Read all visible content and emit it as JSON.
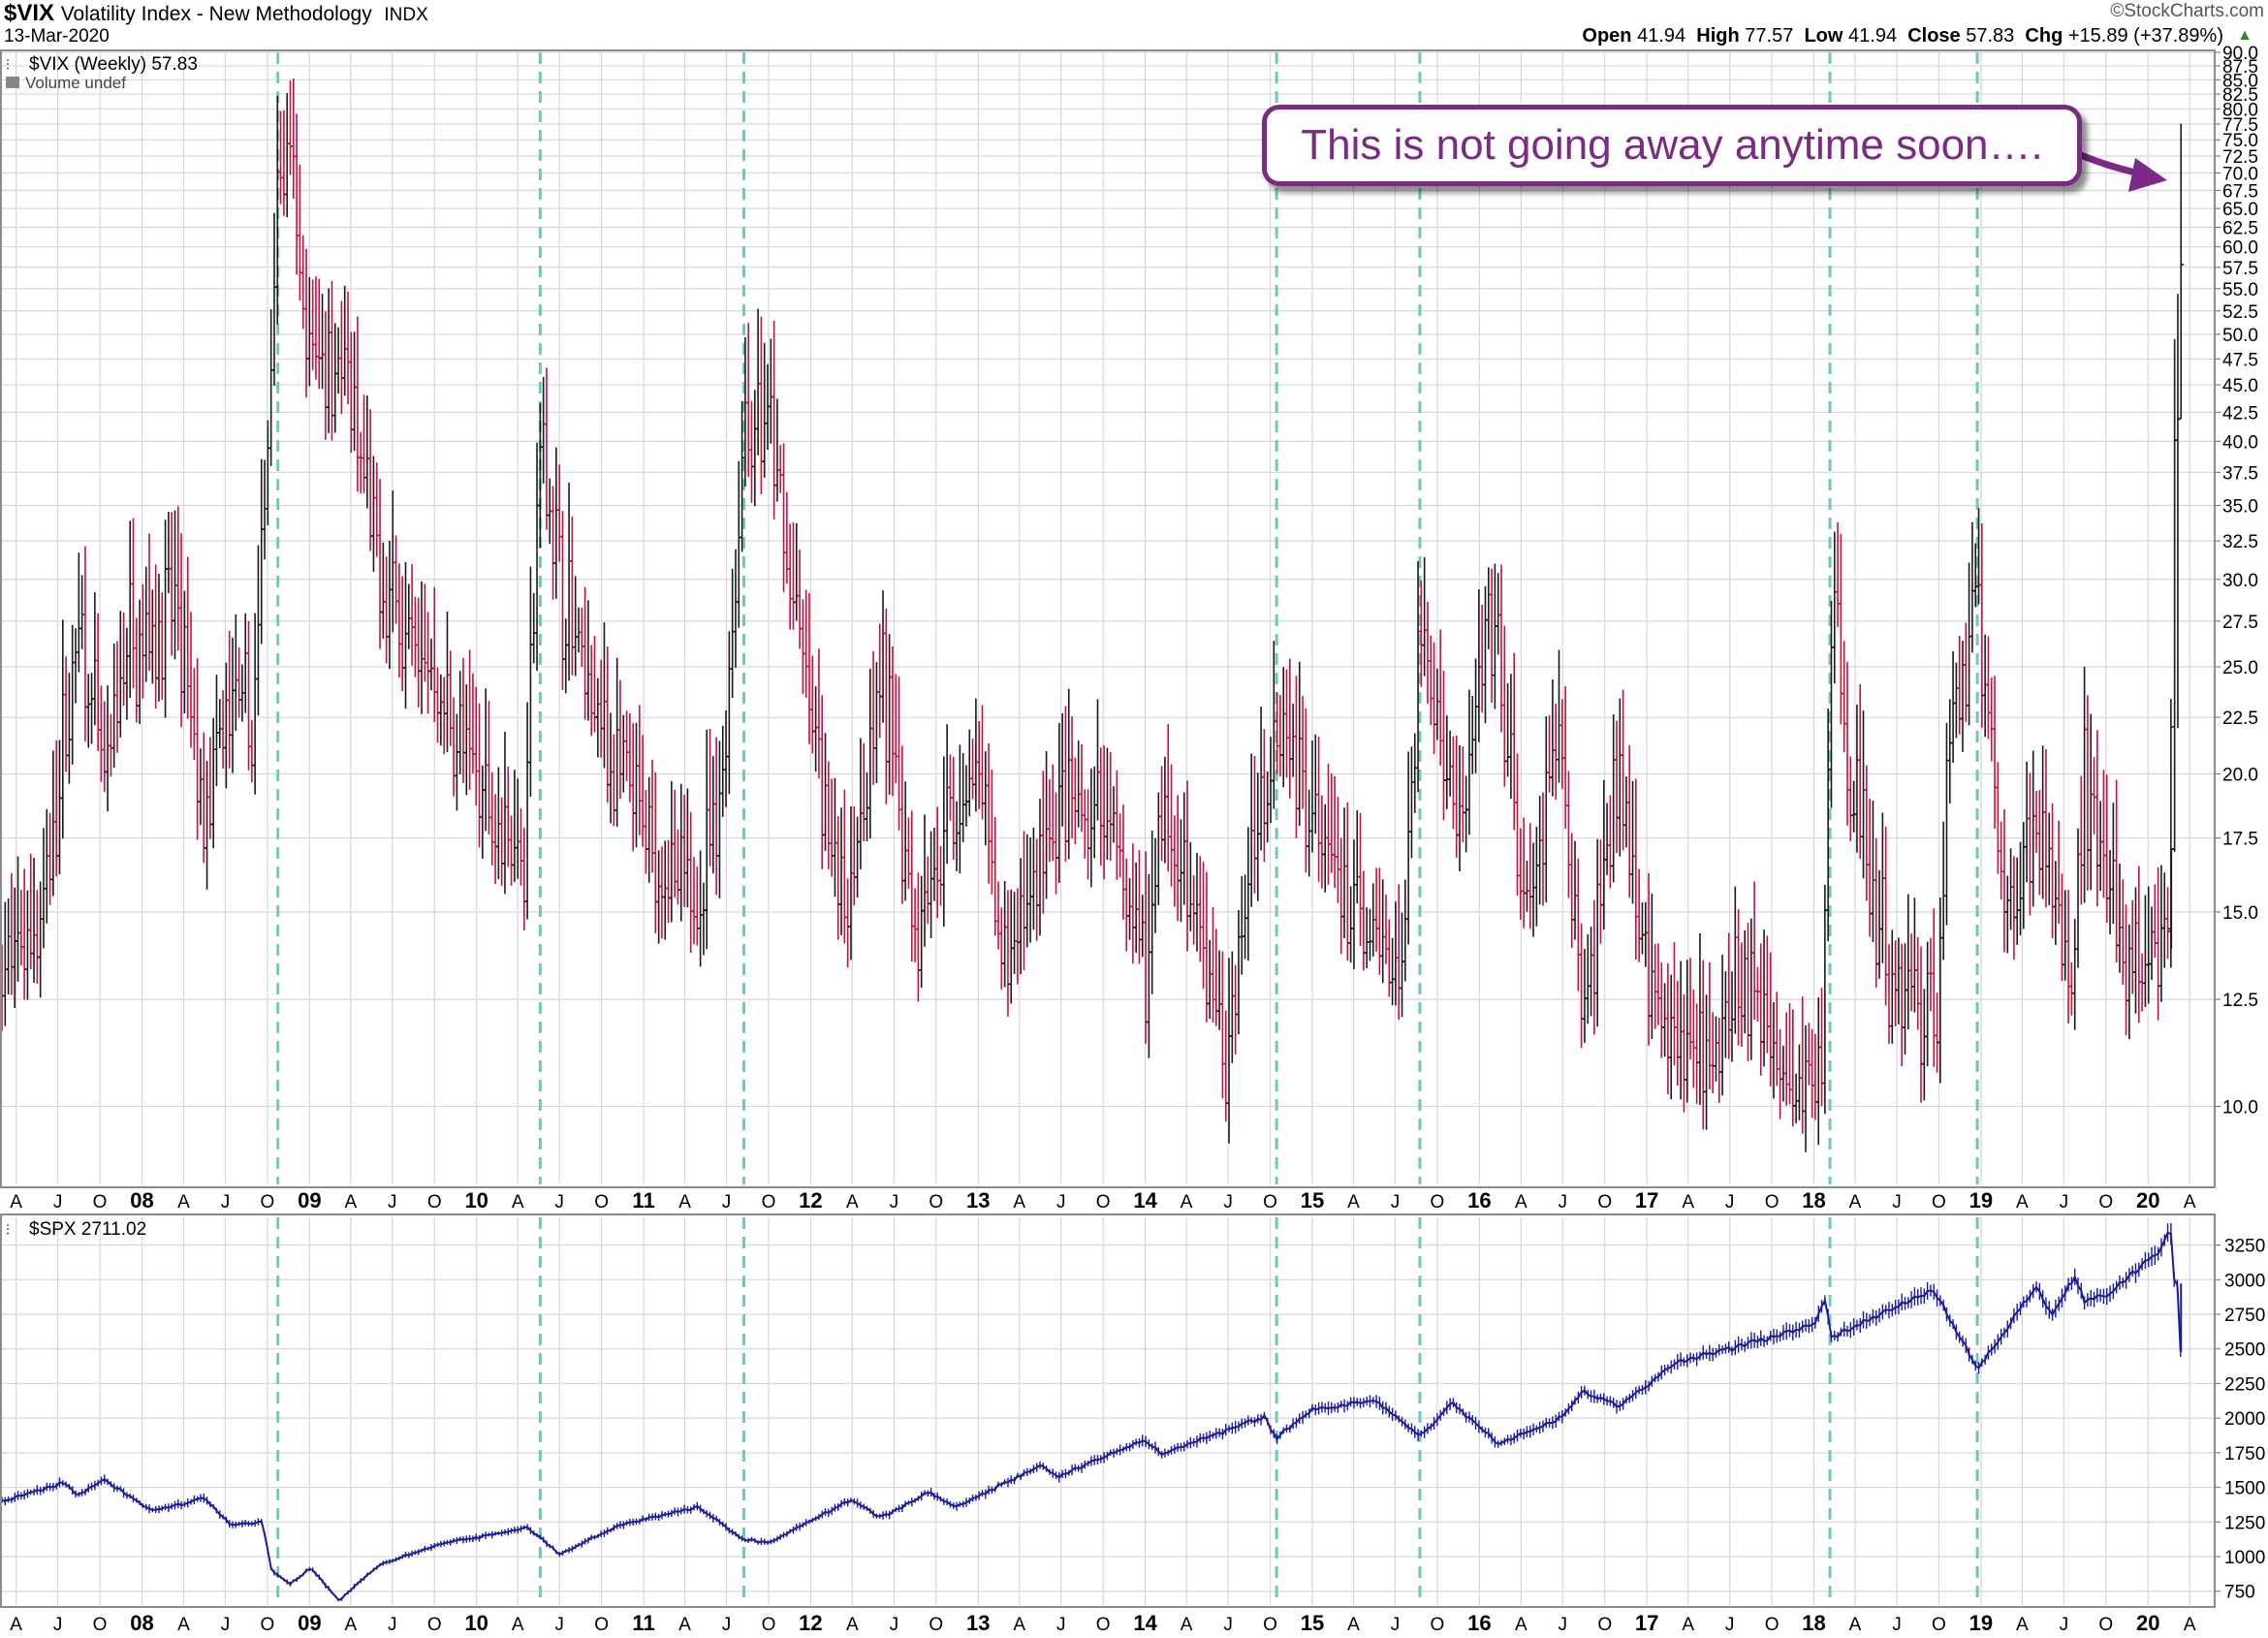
{
  "header": {
    "symbol": "$VIX",
    "name": "Volatility Index - New Methodology",
    "exchange": "INDX",
    "date": "13-Mar-2020",
    "brand": "©StockCharts.com",
    "open_label": "Open",
    "open": "41.94",
    "high_label": "High",
    "high": "77.57",
    "low_label": "Low",
    "low": "41.94",
    "close_label": "Close",
    "close": "57.83",
    "chg_label": "Chg",
    "chg": "+15.89 (+37.89%)",
    "chg_arrow": "▲"
  },
  "annotation": "This is not going away anytime soon….",
  "colors": {
    "up": "#1a1a1a",
    "down": "#c8103c",
    "spx": "#1a1a9c",
    "marker": "#6fc9b5",
    "annotation": "#7b2a86",
    "grid": "#d7d7d7"
  },
  "chart_data": [
    {
      "type": "ohlc",
      "title": "$VIX (Weekly) 57.83",
      "subtitle": "Volume undef",
      "interval": "weekly",
      "y_scale": "log",
      "ylim": [
        8.5,
        90
      ],
      "y_ticks": [
        "90.0",
        "87.5",
        "85.0",
        "82.5",
        "80.0",
        "77.5",
        "75.0",
        "72.5",
        "70.0",
        "67.5",
        "65.0",
        "62.5",
        "60.0",
        "57.5",
        "55.0",
        "52.5",
        "50.0",
        "47.5",
        "45.0",
        "42.5",
        "40.0",
        "37.5",
        "35.0",
        "32.5",
        "30.0",
        "27.5",
        "25.0",
        "22.5",
        "20.0",
        "17.5",
        "15.0",
        "12.5",
        "10.0"
      ],
      "x_ticks": [
        "A",
        "J",
        "O",
        "08",
        "A",
        "J",
        "O",
        "09",
        "A",
        "J",
        "O",
        "10",
        "A",
        "J",
        "O",
        "11",
        "A",
        "J",
        "O",
        "12",
        "A",
        "J",
        "O",
        "13",
        "A",
        "J",
        "O",
        "14",
        "A",
        "J",
        "O",
        "15",
        "A",
        "J",
        "O",
        "16",
        "A",
        "J",
        "O",
        "17",
        "A",
        "J",
        "O",
        "18",
        "A",
        "J",
        "O",
        "19",
        "A",
        "J",
        "O",
        "20",
        "A"
      ],
      "x_range": [
        "2007-03-01",
        "2020-05-15"
      ],
      "anchors": [
        {
          "date": "2007-03-01",
          "value": 13
        },
        {
          "date": "2007-06-01",
          "value": 15
        },
        {
          "date": "2007-08-15",
          "value": 27
        },
        {
          "date": "2007-10-15",
          "value": 19
        },
        {
          "date": "2007-11-25",
          "value": 26
        },
        {
          "date": "2008-01-20",
          "value": 27
        },
        {
          "date": "2008-03-15",
          "value": 28
        },
        {
          "date": "2008-05-15",
          "value": 18
        },
        {
          "date": "2008-07-15",
          "value": 23
        },
        {
          "date": "2008-09-01",
          "value": 22
        },
        {
          "date": "2008-09-25",
          "value": 35
        },
        {
          "date": "2008-10-24",
          "value": 72
        },
        {
          "date": "2008-11-20",
          "value": 70
        },
        {
          "date": "2008-12-25",
          "value": 48
        },
        {
          "date": "2009-03-08",
          "value": 48
        },
        {
          "date": "2009-06-01",
          "value": 30
        },
        {
          "date": "2009-09-15",
          "value": 25
        },
        {
          "date": "2009-12-20",
          "value": 20
        },
        {
          "date": "2010-04-15",
          "value": 17
        },
        {
          "date": "2010-05-20",
          "value": 40
        },
        {
          "date": "2010-07-15",
          "value": 28
        },
        {
          "date": "2010-10-15",
          "value": 21
        },
        {
          "date": "2011-01-15",
          "value": 17
        },
        {
          "date": "2011-04-15",
          "value": 15
        },
        {
          "date": "2011-06-20",
          "value": 19
        },
        {
          "date": "2011-08-10",
          "value": 42
        },
        {
          "date": "2011-10-05",
          "value": 40
        },
        {
          "date": "2011-12-20",
          "value": 24
        },
        {
          "date": "2012-03-15",
          "value": 15
        },
        {
          "date": "2012-06-05",
          "value": 24
        },
        {
          "date": "2012-08-15",
          "value": 15
        },
        {
          "date": "2012-12-28",
          "value": 20
        },
        {
          "date": "2013-03-01",
          "value": 13
        },
        {
          "date": "2013-06-20",
          "value": 18
        },
        {
          "date": "2013-10-10",
          "value": 18
        },
        {
          "date": "2014-01-01",
          "value": 13
        },
        {
          "date": "2014-02-05",
          "value": 19
        },
        {
          "date": "2014-06-30",
          "value": 11
        },
        {
          "date": "2014-08-05",
          "value": 15
        },
        {
          "date": "2014-10-15",
          "value": 23
        },
        {
          "date": "2014-12-15",
          "value": 20
        },
        {
          "date": "2015-03-15",
          "value": 15
        },
        {
          "date": "2015-07-15",
          "value": 13
        },
        {
          "date": "2015-08-24",
          "value": 28
        },
        {
          "date": "2015-09-25",
          "value": 23
        },
        {
          "date": "2015-11-20",
          "value": 18
        },
        {
          "date": "2016-01-20",
          "value": 26
        },
        {
          "date": "2016-02-15",
          "value": 24
        },
        {
          "date": "2016-04-15",
          "value": 14
        },
        {
          "date": "2016-06-24",
          "value": 22
        },
        {
          "date": "2016-08-15",
          "value": 12
        },
        {
          "date": "2016-11-04",
          "value": 21
        },
        {
          "date": "2017-01-15",
          "value": 12
        },
        {
          "date": "2017-05-15",
          "value": 11
        },
        {
          "date": "2017-08-15",
          "value": 13
        },
        {
          "date": "2017-11-10",
          "value": 10
        },
        {
          "date": "2018-01-20",
          "value": 11
        },
        {
          "date": "2018-02-08",
          "value": 30
        },
        {
          "date": "2018-03-20",
          "value": 20
        },
        {
          "date": "2018-06-15",
          "value": 13
        },
        {
          "date": "2018-09-28",
          "value": 12
        },
        {
          "date": "2018-10-25",
          "value": 22
        },
        {
          "date": "2018-12-24",
          "value": 30
        },
        {
          "date": "2019-02-15",
          "value": 15
        },
        {
          "date": "2019-05-15",
          "value": 18
        },
        {
          "date": "2019-07-15",
          "value": 13
        },
        {
          "date": "2019-08-15",
          "value": 20
        },
        {
          "date": "2019-10-15",
          "value": 15
        },
        {
          "date": "2019-12-20",
          "value": 13
        },
        {
          "date": "2020-02-14",
          "value": 14
        },
        {
          "date": "2020-02-28",
          "value": 40
        },
        {
          "date": "2020-03-13",
          "value": 57.8
        }
      ],
      "last_bars": [
        {
          "date": "2020-02-21",
          "open": 14.4,
          "high": 17.1,
          "low": 13.9,
          "close": 17.1
        },
        {
          "date": "2020-02-28",
          "open": 17.1,
          "high": 49.5,
          "low": 17.0,
          "close": 40.1
        },
        {
          "date": "2020-03-06",
          "open": 40.1,
          "high": 54.4,
          "low": 22.0,
          "close": 41.9
        },
        {
          "date": "2020-03-13",
          "open": 41.94,
          "high": 77.57,
          "low": 41.94,
          "close": 57.83
        }
      ],
      "vertical_markers": [
        "2008-10-24",
        "2010-05-20",
        "2011-08-08",
        "2014-10-15",
        "2015-08-24",
        "2018-02-05",
        "2018-12-24"
      ]
    },
    {
      "type": "line",
      "title": "$SPX 2711.02",
      "y_scale": "linear",
      "ylim": [
        650,
        3450
      ],
      "y_ticks": [
        "3250",
        "3000",
        "2750",
        "2500",
        "2250",
        "2000",
        "1750",
        "1500",
        "1250",
        "1000",
        "750"
      ],
      "x_ticks": [
        "A",
        "J",
        "O",
        "08",
        "A",
        "J",
        "O",
        "09",
        "A",
        "J",
        "O",
        "10",
        "A",
        "J",
        "O",
        "11",
        "A",
        "J",
        "O",
        "12",
        "A",
        "J",
        "O",
        "13",
        "A",
        "J",
        "O",
        "14",
        "A",
        "J",
        "O",
        "15",
        "A",
        "J",
        "O",
        "16",
        "A",
        "J",
        "O",
        "17",
        "A",
        "J",
        "O",
        "18",
        "A",
        "J",
        "O",
        "19",
        "A",
        "J",
        "O",
        "20",
        "A"
      ],
      "anchors": [
        {
          "date": "2007-03-01",
          "value": 1400
        },
        {
          "date": "2007-07-15",
          "value": 1530
        },
        {
          "date": "2007-08-15",
          "value": 1440
        },
        {
          "date": "2007-10-10",
          "value": 1560
        },
        {
          "date": "2008-01-20",
          "value": 1330
        },
        {
          "date": "2008-05-15",
          "value": 1420
        },
        {
          "date": "2008-07-15",
          "value": 1230
        },
        {
          "date": "2008-09-20",
          "value": 1250
        },
        {
          "date": "2008-10-10",
          "value": 900
        },
        {
          "date": "2008-11-20",
          "value": 800
        },
        {
          "date": "2009-01-05",
          "value": 920
        },
        {
          "date": "2009-03-06",
          "value": 680
        },
        {
          "date": "2009-06-01",
          "value": 940
        },
        {
          "date": "2009-10-15",
          "value": 1090
        },
        {
          "date": "2010-04-23",
          "value": 1210
        },
        {
          "date": "2010-07-02",
          "value": 1020
        },
        {
          "date": "2010-11-05",
          "value": 1220
        },
        {
          "date": "2011-04-29",
          "value": 1360
        },
        {
          "date": "2011-08-08",
          "value": 1120
        },
        {
          "date": "2011-10-03",
          "value": 1100
        },
        {
          "date": "2011-12-30",
          "value": 1257
        },
        {
          "date": "2012-04-01",
          "value": 1410
        },
        {
          "date": "2012-06-01",
          "value": 1280
        },
        {
          "date": "2012-09-15",
          "value": 1460
        },
        {
          "date": "2012-11-15",
          "value": 1360
        },
        {
          "date": "2013-05-20",
          "value": 1660
        },
        {
          "date": "2013-06-24",
          "value": 1575
        },
        {
          "date": "2013-12-31",
          "value": 1848
        },
        {
          "date": "2014-02-03",
          "value": 1740
        },
        {
          "date": "2014-09-18",
          "value": 2010
        },
        {
          "date": "2014-10-15",
          "value": 1860
        },
        {
          "date": "2014-12-31",
          "value": 2058
        },
        {
          "date": "2015-05-20",
          "value": 2130
        },
        {
          "date": "2015-08-25",
          "value": 1867
        },
        {
          "date": "2015-11-03",
          "value": 2110
        },
        {
          "date": "2016-02-11",
          "value": 1810
        },
        {
          "date": "2016-06-27",
          "value": 2000
        },
        {
          "date": "2016-08-15",
          "value": 2190
        },
        {
          "date": "2016-11-04",
          "value": 2085
        },
        {
          "date": "2017-03-01",
          "value": 2395
        },
        {
          "date": "2017-12-31",
          "value": 2673
        },
        {
          "date": "2018-01-26",
          "value": 2873
        },
        {
          "date": "2018-02-08",
          "value": 2581
        },
        {
          "date": "2018-06-15",
          "value": 2780
        },
        {
          "date": "2018-09-20",
          "value": 2930
        },
        {
          "date": "2018-12-24",
          "value": 2351
        },
        {
          "date": "2019-04-30",
          "value": 2945
        },
        {
          "date": "2019-06-03",
          "value": 2745
        },
        {
          "date": "2019-07-26",
          "value": 3025
        },
        {
          "date": "2019-08-15",
          "value": 2850
        },
        {
          "date": "2019-10-02",
          "value": 2885
        },
        {
          "date": "2020-01-31",
          "value": 3230
        },
        {
          "date": "2020-02-19",
          "value": 3386
        },
        {
          "date": "2020-02-28",
          "value": 2954
        },
        {
          "date": "2020-03-06",
          "value": 2972
        },
        {
          "date": "2020-03-12",
          "value": 2480
        },
        {
          "date": "2020-03-13",
          "value": 2711
        }
      ]
    }
  ]
}
